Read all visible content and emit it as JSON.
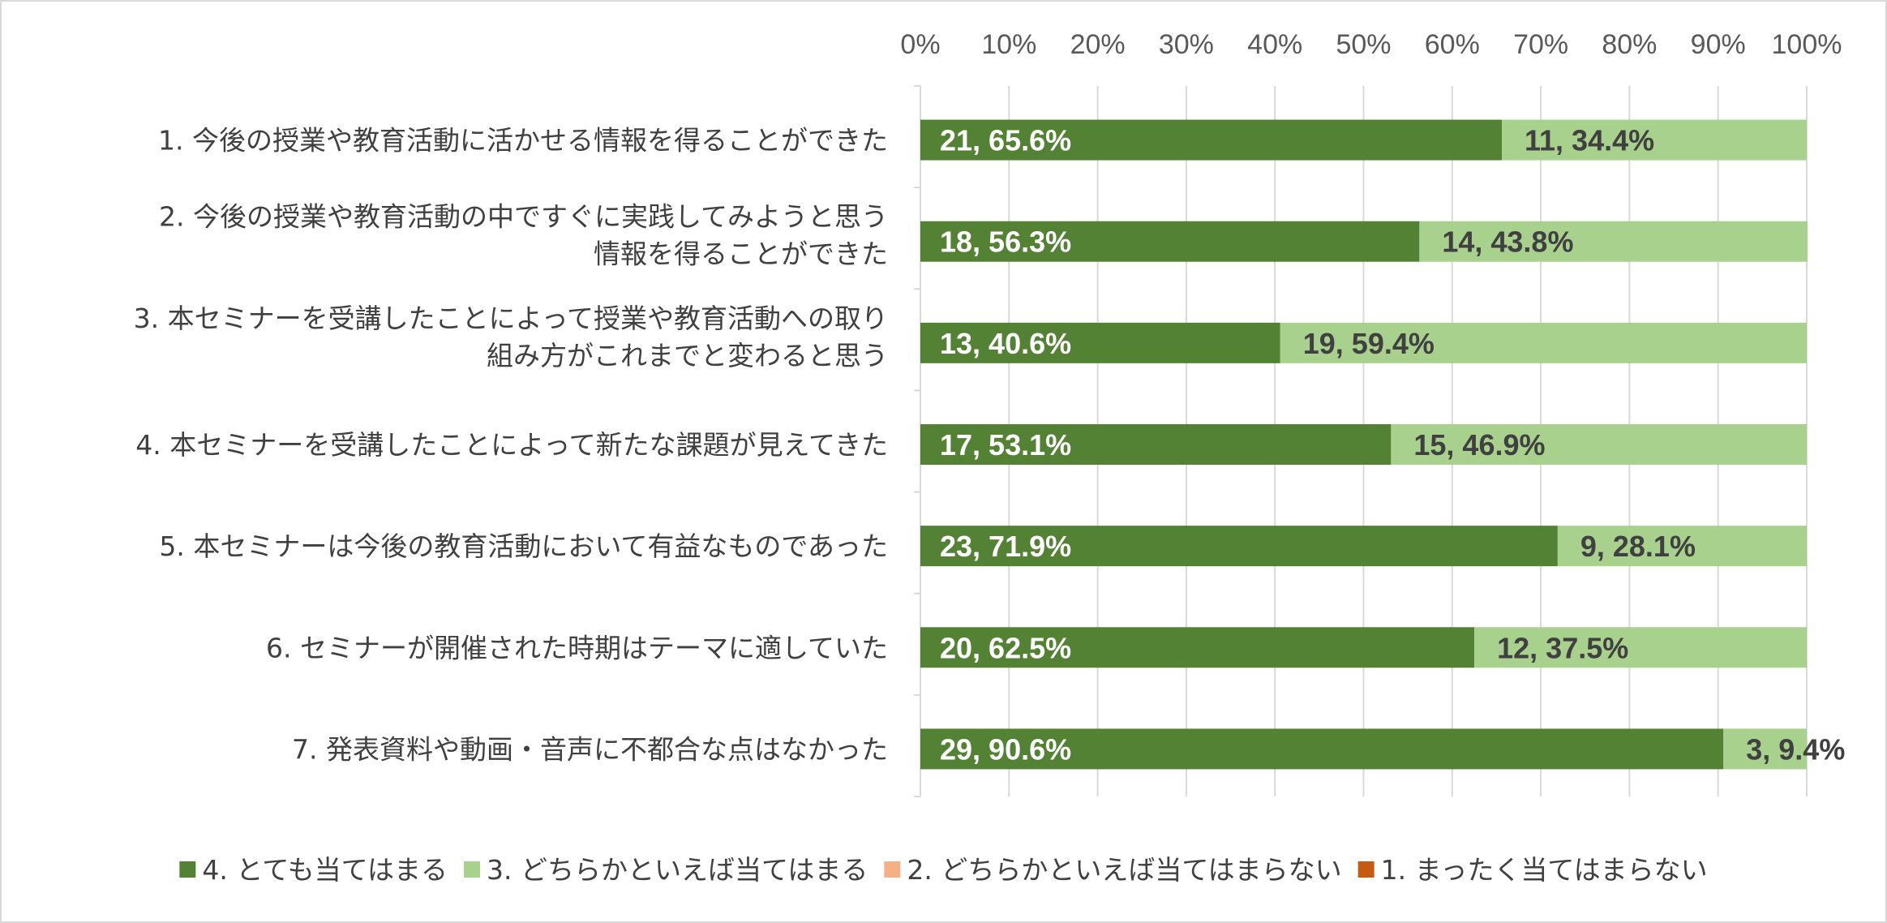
{
  "chart_data": {
    "type": "bar",
    "orientation": "horizontal",
    "stacked": true,
    "percent_stacked": true,
    "title": "",
    "xlabel": "",
    "ylabel": "",
    "xlim": [
      0,
      100
    ],
    "x_ticks": [
      "0%",
      "10%",
      "20%",
      "30%",
      "40%",
      "50%",
      "60%",
      "70%",
      "80%",
      "90%",
      "100%"
    ],
    "grid": true,
    "legend_position": "bottom",
    "categories": [
      [
        "1. 今後の授業や教育活動に活かせる情報を得ることができた"
      ],
      [
        "2. 今後の授業や教育活動の中ですぐに実践してみようと思う",
        "情報を得ることができた"
      ],
      [
        "3. 本セミナーを受講したことによって授業や教育活動への取り",
        "組み方がこれまでと変わると思う"
      ],
      [
        "4. 本セミナーを受講したことによって新たな課題が見えてきた"
      ],
      [
        "5. 本セミナーは今後の教育活動において有益なものであった"
      ],
      [
        "6. セミナーが開催された時期はテーマに適していた"
      ],
      [
        "7. 発表資料や動画・音声に不都合な点はなかった"
      ]
    ],
    "series": [
      {
        "name": "4. とても当てはまる",
        "color": "#548235",
        "counts": [
          21,
          18,
          13,
          17,
          23,
          20,
          29
        ],
        "values": [
          65.6,
          56.3,
          40.6,
          53.1,
          71.9,
          62.5,
          90.6
        ],
        "labels": [
          "21, 65.6%",
          "18, 56.3%",
          "13, 40.6%",
          "17, 53.1%",
          "23, 71.9%",
          "20, 62.5%",
          "29, 90.6%"
        ]
      },
      {
        "name": "3. どちらかといえば当てはまる",
        "color": "#a9d18e",
        "counts": [
          11,
          14,
          19,
          15,
          9,
          12,
          3
        ],
        "values": [
          34.4,
          43.8,
          59.4,
          46.9,
          28.1,
          37.5,
          9.4
        ],
        "labels": [
          "11, 34.4%",
          "14, 43.8%",
          "19, 59.4%",
          "15, 46.9%",
          "9, 28.1%",
          "12, 37.5%",
          "3, 9.4%"
        ]
      },
      {
        "name": "2. どちらかといえば当てはまらない",
        "color": "#f4b183",
        "counts": [
          0,
          0,
          0,
          0,
          0,
          0,
          0
        ],
        "values": [
          0,
          0,
          0,
          0,
          0,
          0,
          0
        ]
      },
      {
        "name": "1. まったく当てはまらない",
        "color": "#c55a11",
        "counts": [
          0,
          0,
          0,
          0,
          0,
          0,
          0
        ],
        "values": [
          0,
          0,
          0,
          0,
          0,
          0,
          0
        ]
      }
    ]
  }
}
